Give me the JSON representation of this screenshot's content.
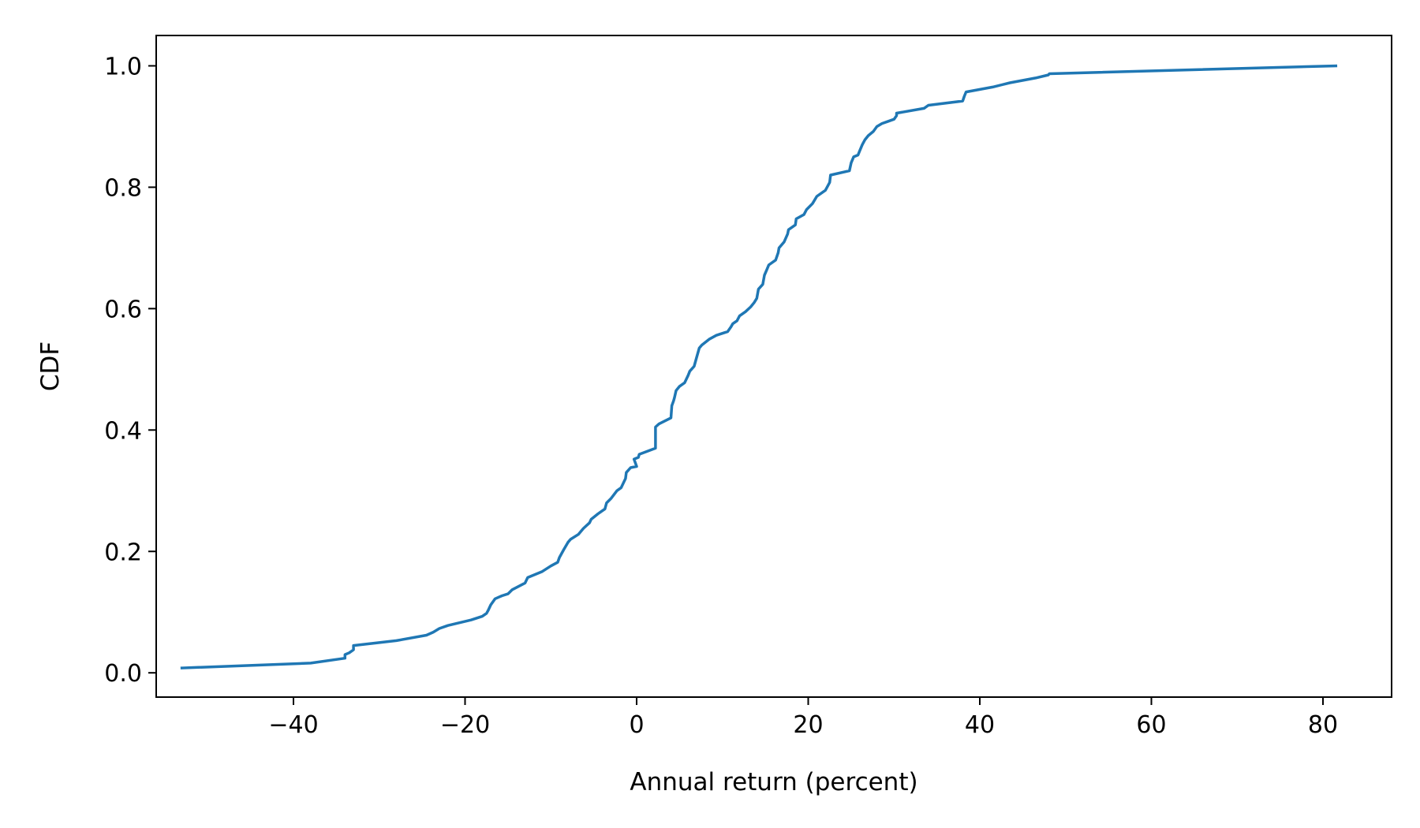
{
  "chart_data": {
    "type": "line",
    "title": "",
    "xlabel": "Annual return (percent)",
    "ylabel": "CDF",
    "xlim": [
      -56,
      88
    ],
    "ylim": [
      -0.04,
      1.05
    ],
    "xticks": [
      -40,
      -20,
      0,
      20,
      40,
      60,
      80
    ],
    "xtick_labels": [
      "−40",
      "−20",
      "0",
      "20",
      "40",
      "60",
      "80"
    ],
    "yticks": [
      0.0,
      0.2,
      0.4,
      0.6,
      0.8,
      1.0
    ],
    "ytick_labels": [
      "0.0",
      "0.2",
      "0.4",
      "0.6",
      "0.8",
      "1.0"
    ],
    "grid": false,
    "series": [
      {
        "color": "#1f77b4",
        "x": [
          -53,
          -38,
          -34,
          -34,
          -33.5,
          -33,
          -33,
          -28,
          -24.5,
          -23.7,
          -23,
          -22,
          -19.3,
          -18,
          -17.5,
          -17.3,
          -17,
          -16.5,
          -15.7,
          -15,
          -14.5,
          -13,
          -12.7,
          -11,
          -10,
          -9.2,
          -9,
          -8.5,
          -8,
          -7.7,
          -6.8,
          -6.2,
          -5.5,
          -5.3,
          -4.5,
          -3.7,
          -3.5,
          -3,
          -2.3,
          -1.8,
          -1.3,
          -1.2,
          -0.7,
          0,
          -0.3,
          0.2,
          0.3,
          2.2,
          2.2,
          2.6,
          4,
          4.1,
          4.3,
          4.4,
          4.6,
          5,
          5.6,
          6,
          6.2,
          6.7,
          7,
          7.3,
          7.6,
          8.5,
          9.3,
          10.6,
          11,
          11.2,
          11.7,
          12,
          12.7,
          13.3,
          13.7,
          14,
          14.2,
          14.7,
          14.9,
          15.2,
          15.4,
          16.2,
          16.5,
          16.6,
          17.2,
          17.6,
          17.7,
          18.5,
          18.6,
          19.5,
          19.8,
          20.5,
          21,
          22,
          22.5,
          22.6,
          24.8,
          25,
          25.3,
          25.8,
          26,
          26.3,
          26.6,
          27,
          27.6,
          28,
          28.6,
          29.2,
          30,
          30.3,
          30.3,
          33.5,
          34,
          38,
          38.2,
          38.4,
          41.5,
          43.5,
          46.5,
          48,
          48.1,
          81.5
        ],
        "y": [
          0.008,
          0.016,
          0.024,
          0.03,
          0.033,
          0.038,
          0.045,
          0.053,
          0.062,
          0.067,
          0.073,
          0.078,
          0.087,
          0.093,
          0.098,
          0.103,
          0.112,
          0.122,
          0.127,
          0.13,
          0.137,
          0.148,
          0.157,
          0.167,
          0.176,
          0.182,
          0.19,
          0.203,
          0.215,
          0.22,
          0.228,
          0.238,
          0.247,
          0.253,
          0.262,
          0.27,
          0.28,
          0.287,
          0.3,
          0.305,
          0.32,
          0.33,
          0.338,
          0.34,
          0.352,
          0.355,
          0.36,
          0.37,
          0.405,
          0.41,
          0.42,
          0.44,
          0.448,
          0.453,
          0.465,
          0.472,
          0.478,
          0.49,
          0.497,
          0.505,
          0.52,
          0.535,
          0.54,
          0.55,
          0.556,
          0.562,
          0.57,
          0.575,
          0.58,
          0.588,
          0.595,
          0.603,
          0.61,
          0.617,
          0.632,
          0.64,
          0.655,
          0.665,
          0.672,
          0.68,
          0.692,
          0.7,
          0.71,
          0.723,
          0.73,
          0.738,
          0.748,
          0.755,
          0.763,
          0.773,
          0.785,
          0.795,
          0.808,
          0.82,
          0.827,
          0.84,
          0.85,
          0.853,
          0.86,
          0.87,
          0.878,
          0.885,
          0.892,
          0.9,
          0.905,
          0.908,
          0.912,
          0.918,
          0.922,
          0.93,
          0.935,
          0.942,
          0.95,
          0.957,
          0.965,
          0.972,
          0.98,
          0.985,
          0.987,
          1.0
        ]
      }
    ]
  }
}
